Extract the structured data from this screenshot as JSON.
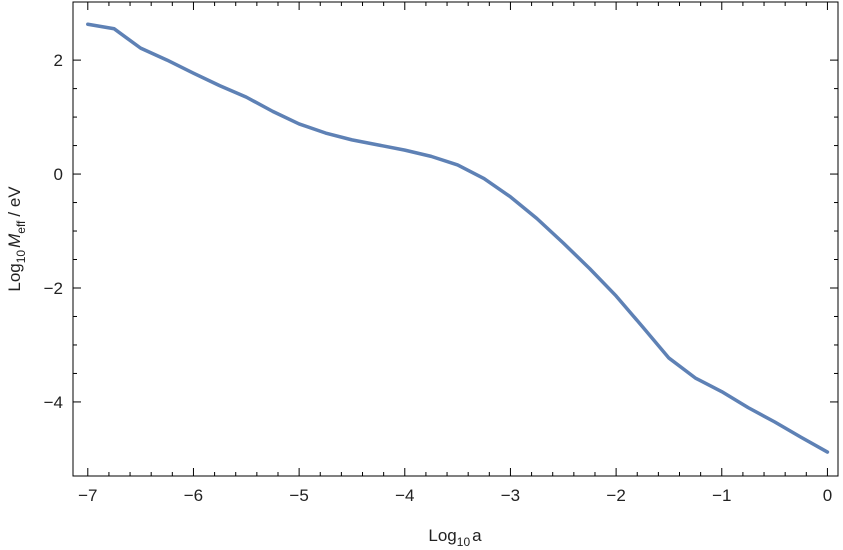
{
  "chart_data": {
    "type": "line",
    "xlabel": [
      "Log",
      "10",
      "a"
    ],
    "ylabel": [
      "Log",
      "10",
      "M",
      "eff",
      "/ eV"
    ],
    "x": [
      -7,
      -6.75,
      -6.5,
      -6.25,
      -6,
      -5.75,
      -5.5,
      -5.25,
      -5,
      -4.75,
      -4.5,
      -4.25,
      -4,
      -3.75,
      -3.5,
      -3.25,
      -3,
      -2.75,
      -2.5,
      -2.25,
      -2,
      -1.75,
      -1.5,
      -1.25,
      -1,
      -0.75,
      -0.5,
      -0.25,
      0
    ],
    "values": [
      2.63,
      2.55,
      2.21,
      2.0,
      1.77,
      1.55,
      1.35,
      1.1,
      0.88,
      0.72,
      0.6,
      0.51,
      0.42,
      0.31,
      0.16,
      -0.08,
      -0.4,
      -0.78,
      -1.21,
      -1.66,
      -2.14,
      -2.68,
      -3.23,
      -3.58,
      -3.82,
      -4.1,
      -4.35,
      -4.62,
      -4.88
    ],
    "color": "#5e81b5",
    "xlim": [
      -7.14,
      0.1
    ],
    "ylim": [
      -5.3,
      3.02
    ],
    "xticks": [
      {
        "value": -7,
        "label": "−7"
      },
      {
        "value": -6,
        "label": "−6"
      },
      {
        "value": -5,
        "label": "−5"
      },
      {
        "value": -4,
        "label": "−4"
      },
      {
        "value": -3,
        "label": "−3"
      },
      {
        "value": -2,
        "label": "−2"
      },
      {
        "value": -1,
        "label": "−1"
      },
      0
    ],
    "yticks": [
      {
        "value": -4,
        "label": "−4"
      },
      {
        "value": -2,
        "label": "−2"
      },
      0,
      2
    ],
    "grid": false
  }
}
